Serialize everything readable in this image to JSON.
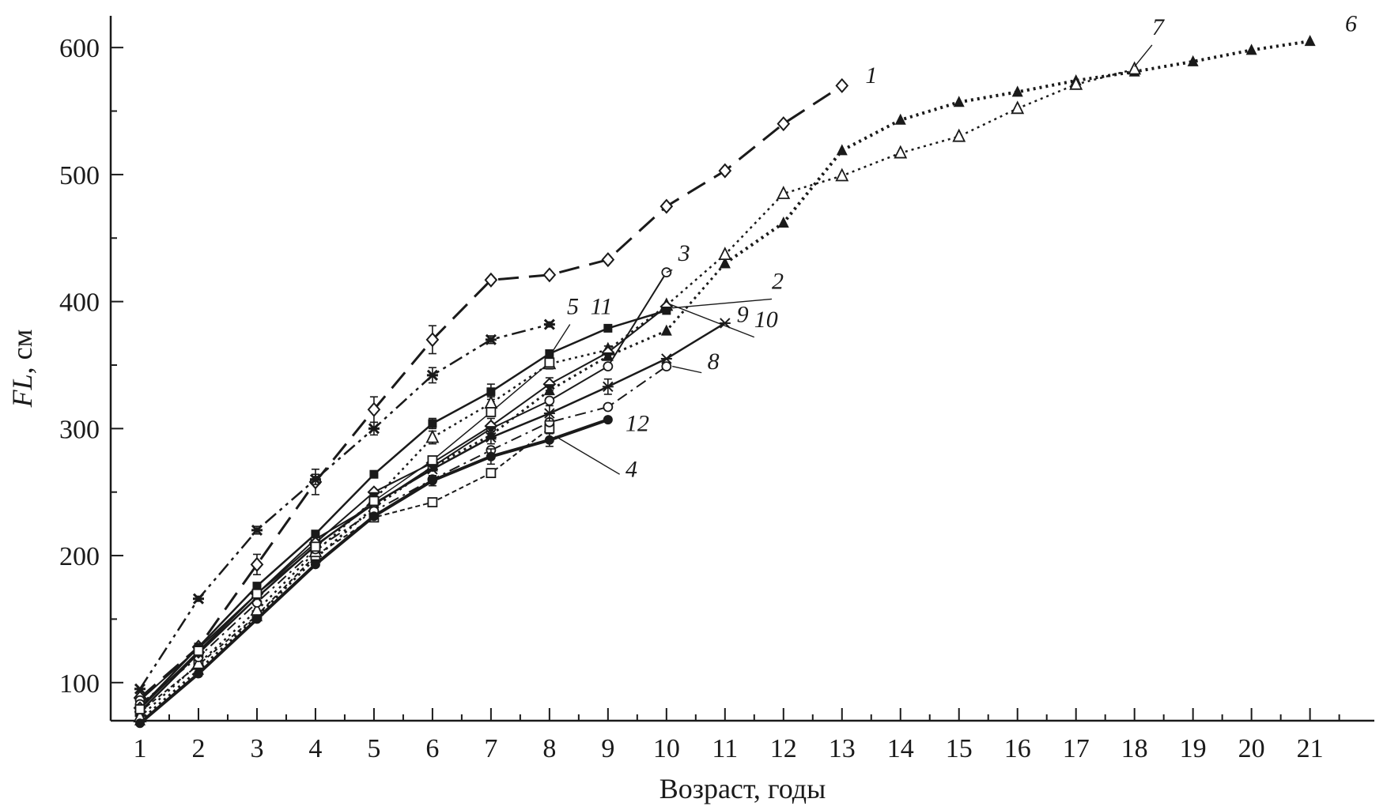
{
  "chart_data": {
    "type": "line",
    "xlabel": "Возраст, годы",
    "ylabel_italic": "FL",
    "ylabel_rest": ", см",
    "xlim": [
      0.5,
      22.1
    ],
    "ylim": [
      70,
      625
    ],
    "x_ticks": [
      1,
      2,
      3,
      4,
      5,
      6,
      7,
      8,
      9,
      10,
      11,
      12,
      13,
      14,
      15,
      16,
      17,
      18,
      19,
      20,
      21
    ],
    "y_ticks": [
      100,
      200,
      300,
      400,
      500,
      600
    ],
    "grid": false,
    "series": [
      {
        "name": "1",
        "dash": "26 13",
        "width": 3,
        "marker": "diamond-open",
        "x": [
          1,
          2,
          3,
          4,
          5,
          6,
          7,
          8,
          9,
          10,
          11,
          12,
          13
        ],
        "y": [
          88,
          128,
          193,
          258,
          315,
          370,
          417,
          421,
          433,
          475,
          503,
          540,
          570
        ],
        "err": [
          0,
          0,
          8,
          10,
          10,
          11,
          0,
          0,
          0,
          0,
          0,
          0,
          0
        ]
      },
      {
        "name": "2",
        "dash": "3 5",
        "width": 3,
        "marker": "triangle-filled",
        "x": [
          1,
          2,
          3,
          4,
          5,
          6,
          7,
          8,
          9,
          10,
          11
        ],
        "y": [
          70,
          110,
          152,
          198,
          238,
          270,
          295,
          330,
          357,
          377,
          430
        ]
      },
      {
        "name": "3",
        "dash": "",
        "width": 2,
        "marker": "circle-open",
        "x": [
          1,
          2,
          3,
          4,
          5,
          6,
          7,
          8,
          9,
          10
        ],
        "y": [
          86,
          127,
          170,
          213,
          240,
          270,
          300,
          322,
          349,
          423
        ]
      },
      {
        "name": "4",
        "dash": "6 4",
        "width": 2,
        "marker": "square-open",
        "x": [
          1,
          2,
          3,
          4,
          5,
          6,
          7,
          8
        ],
        "y": [
          77,
          114,
          153,
          200,
          230,
          242,
          265,
          300
        ]
      },
      {
        "name": "5",
        "dash": "",
        "width": 2.5,
        "marker": "square-filled",
        "x": [
          1,
          2,
          3,
          4,
          5,
          6,
          7,
          8,
          9,
          10
        ],
        "y": [
          80,
          128,
          176,
          217,
          264,
          304,
          329,
          359,
          379,
          393
        ],
        "err": [
          0,
          0,
          0,
          0,
          0,
          4,
          6,
          0,
          0,
          0
        ]
      },
      {
        "name": "6",
        "dash": "3 5",
        "width": 4,
        "marker": "triangle-filled",
        "x": [
          11,
          12,
          13,
          14,
          15,
          16,
          17,
          18,
          19,
          20,
          21
        ],
        "y": [
          430,
          462,
          519,
          543,
          557,
          565,
          574,
          581,
          589,
          598,
          605
        ]
      },
      {
        "name": "7",
        "dash": "3 5",
        "width": 2.5,
        "marker": "triangle-open",
        "x": [
          1,
          2,
          3,
          4,
          5,
          6,
          7,
          8,
          9,
          10,
          11,
          12,
          13,
          14,
          15,
          16,
          17,
          18
        ],
        "y": [
          73,
          115,
          157,
          203,
          244,
          293,
          320,
          351,
          362,
          397,
          437,
          485,
          499,
          517,
          530,
          552,
          571,
          583
        ],
        "err": [
          0,
          0,
          0,
          0,
          0,
          5,
          5,
          4,
          0,
          0,
          0,
          0,
          0,
          0,
          0,
          0,
          0,
          0
        ]
      },
      {
        "name": "8",
        "dash": "14 6 3 6",
        "width": 2,
        "marker": "circle-open",
        "x": [
          1,
          2,
          3,
          4,
          5,
          6,
          7,
          8,
          9,
          10
        ],
        "y": [
          83,
          120,
          163,
          205,
          235,
          260,
          283,
          305,
          317,
          349
        ]
      },
      {
        "name": "9",
        "dash": "",
        "width": 2.5,
        "marker": "star",
        "x": [
          1,
          2,
          3,
          4,
          5,
          6,
          7,
          8,
          9,
          10,
          11
        ],
        "y": [
          77,
          123,
          167,
          208,
          241,
          268,
          293,
          312,
          333,
          355,
          383
        ],
        "err": [
          0,
          0,
          0,
          0,
          0,
          0,
          5,
          6,
          6,
          0,
          0
        ]
      },
      {
        "name": "10",
        "dash": "",
        "width": 2,
        "marker": "diamond-half",
        "x": [
          1,
          2,
          3,
          4,
          5,
          6,
          7,
          8,
          9,
          10
        ],
        "y": [
          80,
          124,
          170,
          210,
          250,
          273,
          302,
          335,
          360,
          396
        ],
        "err": [
          0,
          0,
          0,
          0,
          0,
          5,
          6,
          5,
          5,
          0
        ]
      },
      {
        "name": "11",
        "dash": "",
        "width": 1.5,
        "marker": "square-open",
        "x": [
          1,
          2,
          3,
          4,
          5,
          6,
          7,
          8
        ],
        "y": [
          79,
          125,
          170,
          207,
          243,
          275,
          313,
          352
        ]
      },
      {
        "name": "12",
        "dash": "",
        "width": 4,
        "marker": "circle-filled",
        "x": [
          1,
          2,
          3,
          4,
          5,
          6,
          7,
          8,
          9
        ],
        "y": [
          68,
          107,
          150,
          193,
          231,
          259,
          278,
          291,
          307
        ],
        "err": [
          0,
          0,
          0,
          0,
          0,
          4,
          6,
          5,
          0
        ]
      },
      {
        "name": "",
        "dash": "18 6 4 6 4 6",
        "width": 2.5,
        "marker": "star-bold",
        "x": [
          1,
          2,
          3,
          4,
          5,
          6,
          7,
          8
        ],
        "y": [
          95,
          166,
          220,
          260,
          300,
          342,
          370,
          382
        ],
        "err": [
          0,
          2,
          3,
          4,
          5,
          6,
          3,
          2
        ]
      }
    ],
    "annotations": [
      {
        "text": "1",
        "x": 13.4,
        "y": 572
      },
      {
        "text": "2",
        "x": 11.8,
        "y": 410
      },
      {
        "text": "3",
        "x": 10.2,
        "y": 432
      },
      {
        "text": "4",
        "x": 9.3,
        "y": 262
      },
      {
        "text": "5",
        "x": 8.3,
        "y": 390
      },
      {
        "text": "11",
        "x": 8.7,
        "y": 390
      },
      {
        "text": "6",
        "x": 21.6,
        "y": 613
      },
      {
        "text": "7",
        "x": 18.3,
        "y": 610
      },
      {
        "text": "8",
        "x": 10.7,
        "y": 347
      },
      {
        "text": "9",
        "x": 11.2,
        "y": 384
      },
      {
        "text": "10",
        "x": 11.5,
        "y": 380
      },
      {
        "text": "12",
        "x": 9.3,
        "y": 298
      }
    ],
    "callouts": [
      {
        "label": "2",
        "from": [
          11.8,
          402
        ],
        "to": [
          10.1,
          395
        ]
      },
      {
        "label": "3",
        "from": [
          10.1,
          425
        ],
        "to": [
          10.0,
          423
        ]
      },
      {
        "label": "4",
        "from": [
          9.2,
          264
        ],
        "to": [
          8.1,
          294
        ]
      },
      {
        "label": "5",
        "from": [
          8.35,
          382
        ],
        "to": [
          8.0,
          357
        ]
      },
      {
        "label": "7",
        "from": [
          18.3,
          602
        ],
        "to": [
          18.0,
          585
        ]
      },
      {
        "label": "8",
        "from": [
          10.6,
          344
        ],
        "to": [
          10.1,
          349
        ]
      },
      {
        "label": "10",
        "from": [
          11.5,
          372
        ],
        "to": [
          10.05,
          398
        ]
      }
    ]
  }
}
